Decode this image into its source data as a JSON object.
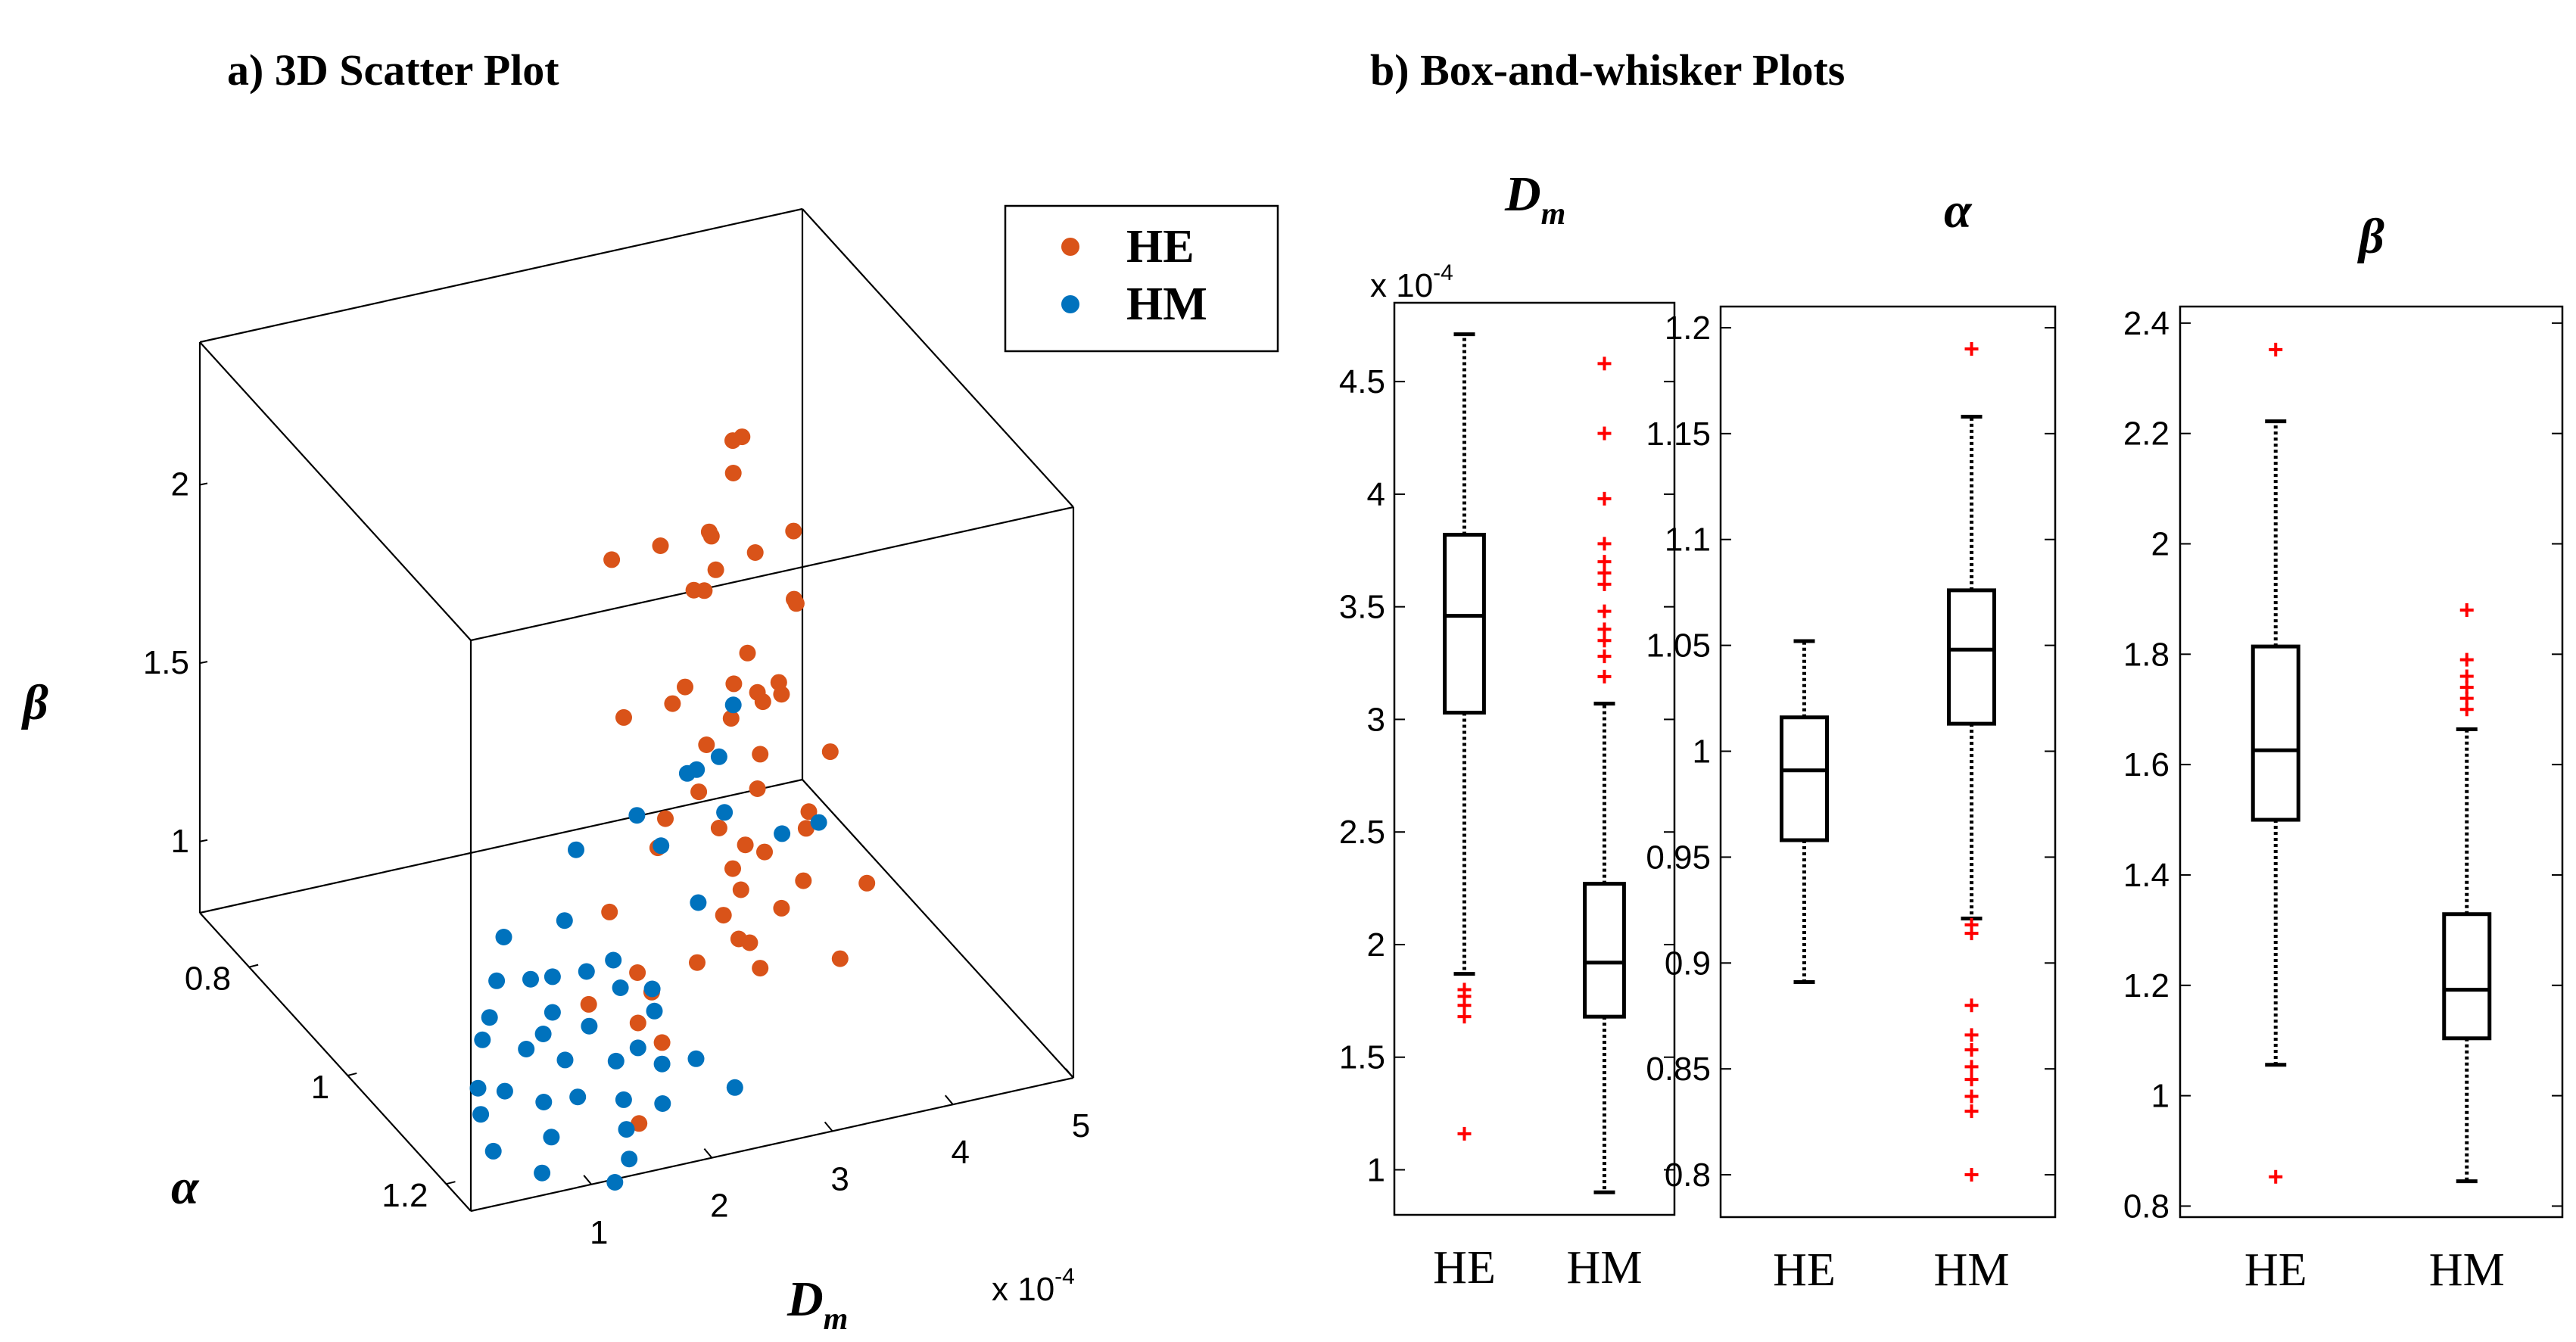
{
  "colors": {
    "HE": "#D95319",
    "HM": "#0072BD",
    "outlier": "#FF0000",
    "box": "#000000"
  },
  "chart_data": [
    {
      "type": "scatter",
      "panel_title": "a) 3D Scatter Plot",
      "zlabel_main": "β",
      "ylabel_main": "α",
      "xlabel_main": "D",
      "xlabel_sub": "m",
      "x_exponent": "x 10",
      "x_exponent_power": "-4",
      "xticks": [
        "1",
        "2",
        "3",
        "4",
        "5"
      ],
      "yticks": [
        "0.8",
        "1",
        "1.2"
      ],
      "zticks": [
        "1",
        "1.5",
        "2"
      ],
      "xlim": [
        0,
        5
      ],
      "ylim": [
        0.7,
        1.25
      ],
      "zlim": [
        0.8,
        2.4
      ],
      "legend": {
        "position": "top-right",
        "entries": [
          "HE",
          "HM"
        ]
      },
      "series": [
        {
          "name": "HE",
          "points": [
            [
              3.4,
              0.95,
              2.25
            ],
            [
              3.2,
              1.0,
              2.25
            ],
            [
              3.6,
              0.92,
              2.2
            ],
            [
              3.0,
              1.0,
              2.1
            ],
            [
              2.8,
              0.95,
              2.0
            ],
            [
              3.3,
              1.02,
              2.05
            ],
            [
              3.7,
              1.0,
              2.05
            ],
            [
              3.1,
              0.98,
              2.05
            ],
            [
              2.6,
              0.9,
              1.9
            ],
            [
              3.5,
              1.05,
              1.95
            ],
            [
              3.2,
              0.92,
              1.8
            ],
            [
              3.0,
              1.05,
              1.75
            ],
            [
              3.4,
              0.98,
              1.7
            ],
            [
              3.6,
              1.0,
              1.6
            ],
            [
              2.9,
              0.95,
              1.55
            ],
            [
              3.3,
              1.03,
              1.5
            ],
            [
              3.8,
              1.05,
              1.5
            ],
            [
              3.1,
              0.97,
              1.45
            ],
            [
              3.5,
              1.08,
              1.4
            ],
            [
              2.7,
              0.9,
              1.45
            ],
            [
              3.4,
              1.0,
              1.35
            ],
            [
              3.0,
              1.02,
              1.3
            ],
            [
              3.6,
              1.05,
              1.3
            ],
            [
              3.2,
              0.93,
              1.25
            ],
            [
              2.8,
              0.96,
              1.25
            ],
            [
              3.9,
              1.1,
              1.2
            ],
            [
              3.3,
              1.0,
              1.2
            ],
            [
              3.5,
              0.99,
              1.15
            ],
            [
              3.1,
              1.04,
              1.15
            ],
            [
              2.9,
              0.92,
              1.1
            ],
            [
              3.7,
              1.02,
              1.1
            ],
            [
              3.4,
              0.95,
              1.05
            ],
            [
              3.0,
              1.06,
              1.05
            ],
            [
              3.6,
              1.0,
              1.0
            ],
            [
              3.2,
              0.98,
              0.98
            ],
            [
              2.5,
              0.92,
              0.95
            ],
            [
              3.8,
              1.07,
              0.95
            ],
            [
              3.3,
              1.03,
              0.9
            ],
            [
              2.9,
              1.0,
              0.9
            ],
            [
              3.5,
              0.96,
              0.85
            ],
            [
              2.2,
              1.05,
              1.0
            ],
            [
              2.0,
              1.1,
              0.95
            ],
            [
              3.4,
              1.0,
              1.62
            ],
            [
              3.1,
              1.02,
              1.6
            ],
            [
              3.7,
              0.97,
              1.58
            ],
            [
              2.8,
              1.0,
              1.68
            ],
            [
              3.2,
              1.06,
              1.7
            ],
            [
              3.6,
              1.03,
              1.9
            ],
            [
              3.0,
              0.99,
              1.92
            ],
            [
              3.3,
              0.94,
              1.88
            ],
            [
              2.0,
              1.0,
              0.85
            ],
            [
              2.4,
              1.03,
              0.9
            ],
            [
              1.6,
              1.2,
              0.85
            ],
            [
              2.2,
              1.1,
              0.88
            ]
          ]
        },
        {
          "name": "HM",
          "points": [
            [
              1.8,
              1.0,
              1.1
            ],
            [
              2.0,
              1.05,
              1.05
            ],
            [
              1.5,
              0.95,
              1.0
            ],
            [
              2.2,
              1.08,
              1.0
            ],
            [
              2.5,
              1.1,
              1.25
            ],
            [
              1.9,
              1.02,
              0.98
            ],
            [
              1.7,
              1.0,
              0.95
            ],
            [
              2.1,
              1.04,
              0.95
            ],
            [
              1.6,
              0.98,
              0.92
            ],
            [
              2.3,
              1.06,
              0.9
            ],
            [
              1.4,
              0.96,
              0.9
            ],
            [
              2.0,
              1.1,
              0.88
            ],
            [
              1.8,
              1.05,
              0.88
            ],
            [
              1.5,
              1.03,
              0.85
            ],
            [
              2.4,
              1.12,
              0.85
            ],
            [
              1.7,
              1.0,
              0.85
            ],
            [
              1.9,
              1.08,
              0.82
            ],
            [
              1.3,
              0.97,
              0.82
            ],
            [
              2.2,
              1.1,
              0.82
            ],
            [
              1.6,
              1.05,
              0.8
            ],
            [
              1.4,
              1.02,
              0.8
            ],
            [
              2.0,
              1.15,
              0.8
            ],
            [
              1.8,
              1.12,
              0.78
            ],
            [
              1.2,
              0.98,
              0.78
            ],
            [
              1.5,
              1.1,
              0.78
            ],
            [
              1.1,
              1.05,
              0.75
            ],
            [
              1.7,
              1.15,
              0.75
            ],
            [
              1.3,
              1.08,
              0.75
            ],
            [
              1.0,
              1.02,
              0.72
            ],
            [
              1.6,
              1.18,
              0.72
            ],
            [
              1.2,
              1.12,
              0.72
            ],
            [
              0.9,
              1.05,
              0.7
            ],
            [
              1.4,
              1.2,
              0.7
            ],
            [
              1.0,
              1.15,
              0.68
            ],
            [
              0.8,
              1.1,
              0.68
            ],
            [
              3.2,
              1.0,
              1.6
            ],
            [
              3.1,
              0.95,
              1.35
            ],
            [
              3.4,
              1.05,
              1.3
            ],
            [
              2.6,
              1.0,
              1.25
            ],
            [
              3.0,
              1.02,
              1.5
            ],
            [
              2.8,
              1.08,
              1.45
            ],
            [
              3.5,
              1.1,
              1.4
            ],
            [
              2.9,
              0.98,
              1.4
            ],
            [
              2.4,
              1.0,
              1.35
            ],
            [
              2.6,
              1.15,
              0.8
            ],
            [
              2.1,
              0.95,
              1.2
            ]
          ]
        }
      ]
    },
    {
      "type": "box",
      "panel_title": "b) Box-and-whisker Plots",
      "title_main": "D",
      "title_sub": "m",
      "exponent_label": "x 10",
      "exponent_power": "-4",
      "categories": [
        "HE",
        "HM"
      ],
      "yticks": [
        "1",
        "1.5",
        "2",
        "2.5",
        "3",
        "3.5",
        "4",
        "4.5"
      ],
      "yrange": [
        0.8,
        4.85
      ],
      "boxes": [
        {
          "whisker_low": 1.87,
          "q1": 3.03,
          "median": 3.46,
          "q3": 3.82,
          "whisker_high": 4.71,
          "outliers": [
            1.16,
            1.68,
            1.73,
            1.77,
            1.8
          ]
        },
        {
          "whisker_low": 0.9,
          "q1": 1.68,
          "median": 1.92,
          "q3": 2.27,
          "whisker_high": 3.07,
          "outliers": [
            3.19,
            3.28,
            3.35,
            3.4,
            3.48,
            3.6,
            3.65,
            3.7,
            3.78,
            3.98,
            4.27,
            4.58
          ]
        }
      ]
    },
    {
      "type": "box",
      "title_main": "α",
      "title_sub": "",
      "categories": [
        "HE",
        "HM"
      ],
      "yticks": [
        "0.8",
        "0.85",
        "0.9",
        "0.95",
        "1",
        "1.05",
        "1.1",
        "1.15",
        "1.2"
      ],
      "yrange": [
        0.78,
        1.21
      ],
      "boxes": [
        {
          "whisker_low": 0.891,
          "q1": 0.958,
          "median": 0.991,
          "q3": 1.016,
          "whisker_high": 1.052,
          "outliers": []
        },
        {
          "whisker_low": 0.921,
          "q1": 1.013,
          "median": 1.048,
          "q3": 1.076,
          "whisker_high": 1.158,
          "outliers": [
            0.8,
            0.83,
            0.837,
            0.845,
            0.851,
            0.859,
            0.866,
            0.88,
            0.914,
            0.918,
            1.19
          ]
        }
      ]
    },
    {
      "type": "box",
      "title_main": "β",
      "title_sub": "",
      "categories": [
        "HE",
        "HM"
      ],
      "yticks": [
        "0.8",
        "1",
        "1.2",
        "1.4",
        "1.6",
        "1.8",
        "2",
        "2.2",
        "2.4"
      ],
      "yrange": [
        0.78,
        2.43
      ],
      "boxes": [
        {
          "whisker_low": 1.056,
          "q1": 1.5,
          "median": 1.626,
          "q3": 1.814,
          "whisker_high": 2.222,
          "outliers": [
            0.853,
            2.352
          ]
        },
        {
          "whisker_low": 0.845,
          "q1": 1.104,
          "median": 1.192,
          "q3": 1.329,
          "whisker_high": 1.664,
          "outliers": [
            1.7,
            1.72,
            1.74,
            1.76,
            1.79,
            1.88
          ]
        }
      ]
    }
  ]
}
